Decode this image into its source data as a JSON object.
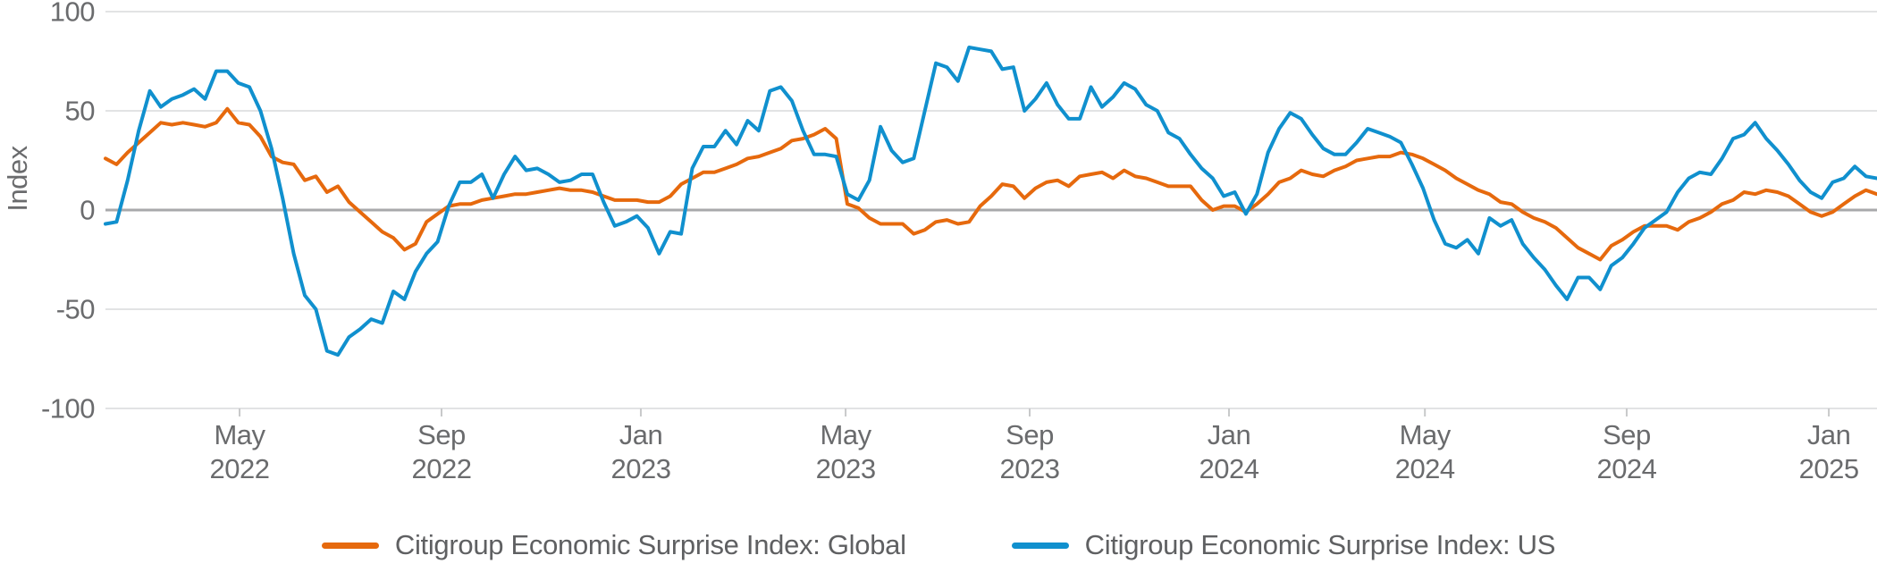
{
  "chart_data": {
    "type": "line",
    "title": "",
    "ylabel": "Index",
    "xlabel": "",
    "ylim": [
      -100,
      100
    ],
    "yticks": [
      100,
      50,
      0,
      -50,
      -100
    ],
    "grid": "horizontal",
    "legend_position": "bottom",
    "x_ticks": [
      {
        "month": "May",
        "year": "2022",
        "pos": 0.0757
      },
      {
        "month": "Sep",
        "year": "2022",
        "pos": 0.1897
      },
      {
        "month": "Jan",
        "year": "2023",
        "pos": 0.3022
      },
      {
        "month": "May",
        "year": "2023",
        "pos": 0.4178
      },
      {
        "month": "Sep",
        "year": "2023",
        "pos": 0.5217
      },
      {
        "month": "Jan",
        "year": "2024",
        "pos": 0.6342
      },
      {
        "month": "May",
        "year": "2024",
        "pos": 0.7448
      },
      {
        "month": "Sep",
        "year": "2024",
        "pos": 0.8587
      },
      {
        "month": "Jan",
        "year": "2025",
        "pos": 0.9728
      }
    ],
    "x_range_note": "weekly samples, Feb 2022 to Feb 2025",
    "series": [
      {
        "name": "Citigroup Economic Surprise Index: Global",
        "color": "#E6690D",
        "values": [
          26,
          23,
          29,
          34,
          39,
          44,
          43,
          44,
          43,
          42,
          44,
          51,
          44,
          43,
          37,
          27,
          24,
          23,
          15,
          17,
          9,
          12,
          4,
          -1,
          -6,
          -11,
          -14,
          -20,
          -17,
          -6,
          -2,
          2,
          3,
          3,
          5,
          6,
          7,
          8,
          8,
          9,
          10,
          11,
          10,
          10,
          9,
          7,
          5,
          5,
          5,
          4,
          4,
          7,
          13,
          16,
          19,
          19,
          21,
          23,
          26,
          27,
          29,
          31,
          35,
          36,
          38,
          41,
          36,
          3,
          1,
          -4,
          -7,
          -7,
          -7,
          -12,
          -10,
          -6,
          -5,
          -7,
          -6,
          2,
          7,
          13,
          12,
          6,
          11,
          14,
          15,
          12,
          17,
          18,
          19,
          16,
          20,
          17,
          16,
          14,
          12,
          12,
          12,
          5,
          0,
          2,
          2,
          -1,
          3,
          8,
          14,
          16,
          20,
          18,
          17,
          20,
          22,
          25,
          26,
          27,
          27,
          29,
          28,
          26,
          23,
          20,
          16,
          13,
          10,
          8,
          4,
          3,
          -1,
          -4,
          -6,
          -9,
          -14,
          -19,
          -22,
          -25,
          -18,
          -15,
          -11,
          -8,
          -8,
          -8,
          -10,
          -6,
          -4,
          -1,
          3,
          5,
          9,
          8,
          10,
          9,
          7,
          3,
          -1,
          -3,
          -1,
          3,
          7,
          10,
          8
        ]
      },
      {
        "name": "Citigroup Economic Surprise Index: US",
        "color": "#1090CE",
        "values": [
          -7,
          -6,
          15,
          40,
          60,
          52,
          56,
          58,
          61,
          56,
          70,
          70,
          64,
          62,
          50,
          31,
          6,
          -22,
          -43,
          -50,
          -71,
          -73,
          -64,
          -60,
          -55,
          -57,
          -41,
          -45,
          -31,
          -22,
          -16,
          2,
          14,
          14,
          18,
          6,
          18,
          27,
          20,
          21,
          18,
          14,
          15,
          18,
          18,
          4,
          -8,
          -6,
          -3,
          -9,
          -22,
          -11,
          -12,
          21,
          32,
          32,
          40,
          33,
          45,
          40,
          60,
          62,
          55,
          40,
          28,
          28,
          27,
          8,
          5,
          15,
          42,
          30,
          24,
          26,
          50,
          74,
          72,
          65,
          82,
          81,
          80,
          71,
          72,
          50,
          56,
          64,
          53,
          46,
          46,
          62,
          52,
          57,
          64,
          61,
          53,
          50,
          39,
          36,
          28,
          21,
          16,
          7,
          9,
          -2,
          8,
          29,
          41,
          49,
          46,
          38,
          31,
          28,
          28,
          34,
          41,
          39,
          37,
          34,
          23,
          11,
          -5,
          -17,
          -19,
          -15,
          -22,
          -4,
          -8,
          -5,
          -17,
          -24,
          -30,
          -38,
          -45,
          -34,
          -34,
          -40,
          -28,
          -24,
          -17,
          -9,
          -5,
          -1,
          9,
          16,
          19,
          18,
          26,
          36,
          38,
          44,
          36,
          30,
          23,
          15,
          9,
          6,
          14,
          16,
          22,
          17,
          16
        ]
      }
    ]
  },
  "legend": {
    "items": [
      {
        "label": "Citigroup Economic Surprise Index: Global",
        "color": "#E6690D"
      },
      {
        "label": "Citigroup Economic Surprise Index: US",
        "color": "#1090CE"
      }
    ]
  },
  "style": {
    "grid_color": "#D9DADB",
    "zero_line_color": "#A8A9AB",
    "axis_text_color": "#6A6B6D",
    "tick_color": "#C8C9CA",
    "line_width": 4
  }
}
